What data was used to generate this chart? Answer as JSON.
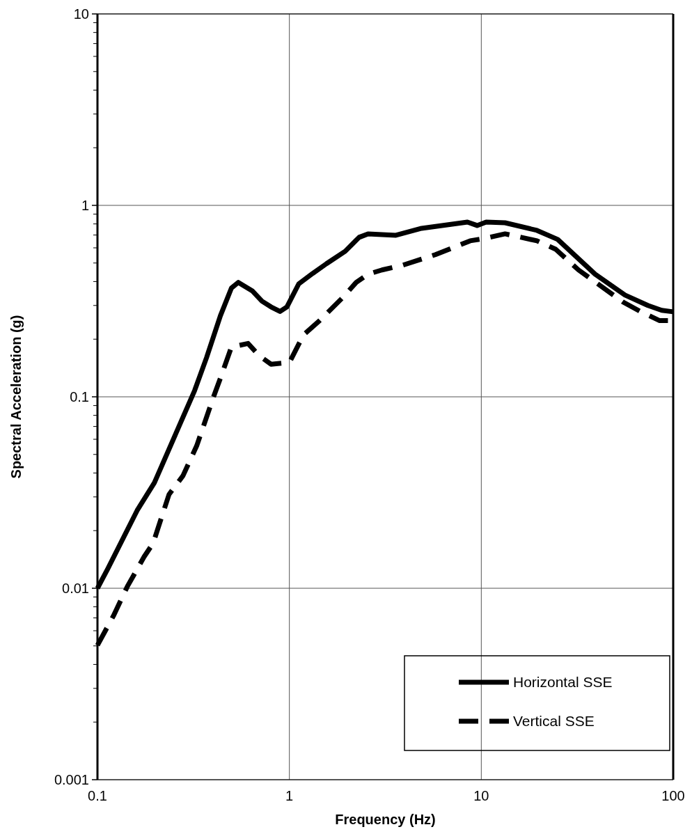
{
  "chart_data": {
    "type": "line",
    "xlabel": "Frequency (Hz)",
    "ylabel": "Spectral Acceleration (g)",
    "log": "xy",
    "xlim": [
      0.1,
      100
    ],
    "ylim": [
      0.001,
      10
    ],
    "xticks": [
      0.1,
      1,
      10,
      100
    ],
    "yticks": [
      0.001,
      0.01,
      0.1,
      1,
      10
    ],
    "grid": true,
    "legend": "bottom right",
    "marker": "none",
    "series": [
      {
        "name": "Horizontal SSE",
        "color": "#000000",
        "line_style": "solid",
        "x": [
          0.1,
          0.113,
          0.161,
          0.198,
          0.265,
          0.321,
          0.37,
          0.437,
          0.499,
          0.542,
          0.64,
          0.72,
          0.802,
          0.894,
          0.971,
          1.119,
          1.322,
          1.561,
          1.955,
          2.31,
          2.57,
          3.59,
          4.89,
          8.47,
          9.51,
          10.6,
          13.3,
          19.5,
          25,
          39.2,
          56.1,
          73.8,
          87.1,
          100
        ],
        "values": [
          0.01,
          0.0126,
          0.0255,
          0.0356,
          0.0695,
          0.108,
          0.16,
          0.265,
          0.37,
          0.396,
          0.358,
          0.316,
          0.295,
          0.279,
          0.295,
          0.389,
          0.441,
          0.496,
          0.576,
          0.681,
          0.71,
          0.698,
          0.759,
          0.818,
          0.785,
          0.818,
          0.811,
          0.74,
          0.664,
          0.437,
          0.34,
          0.3,
          0.283,
          0.278
        ]
      },
      {
        "name": "Vertical SSE",
        "color": "#000000",
        "line_style": "dashed",
        "x": [
          0.1,
          0.121,
          0.143,
          0.175,
          0.195,
          0.236,
          0.279,
          0.329,
          0.402,
          0.437,
          0.499,
          0.609,
          0.696,
          0.802,
          1.0,
          1.186,
          1.436,
          1.891,
          2.23,
          2.57,
          3.04,
          3.9,
          5.77,
          8.75,
          10.3,
          13.3,
          19.5,
          24.4,
          32.1,
          54.7,
          67.9,
          85,
          100
        ],
        "values": [
          0.00504,
          0.00716,
          0.0102,
          0.0146,
          0.0172,
          0.0309,
          0.0387,
          0.0555,
          0.0996,
          0.125,
          0.182,
          0.19,
          0.164,
          0.148,
          0.151,
          0.211,
          0.25,
          0.329,
          0.396,
          0.437,
          0.46,
          0.487,
          0.553,
          0.653,
          0.67,
          0.71,
          0.653,
          0.59,
          0.46,
          0.313,
          0.278,
          0.25,
          0.25
        ]
      }
    ]
  }
}
